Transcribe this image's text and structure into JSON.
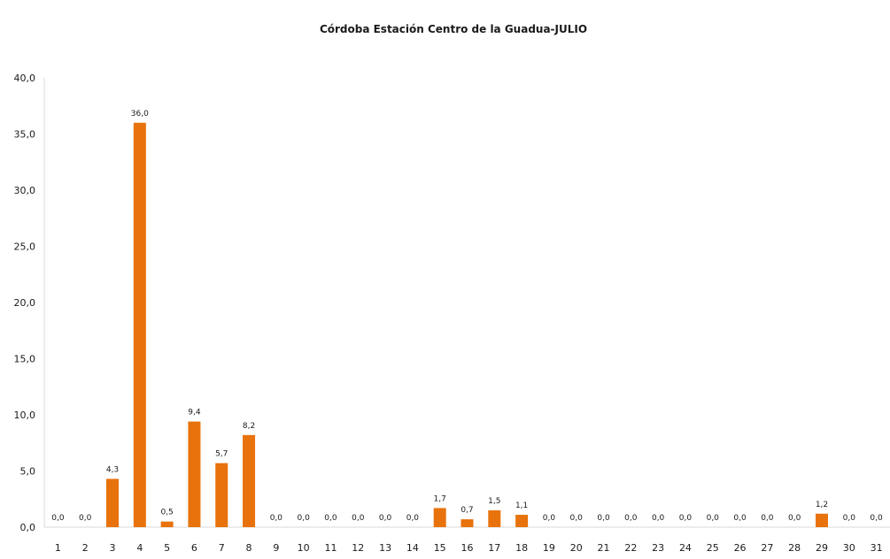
{
  "chart_data": {
    "type": "bar",
    "title": "Córdoba Estación Centro de la Guadua-JULIO",
    "xlabel": "",
    "ylabel": "",
    "ylim": [
      0,
      40
    ],
    "yticks": [
      "0,0",
      "5,0",
      "10,0",
      "15,0",
      "20,0",
      "25,0",
      "30,0",
      "35,0",
      "40,0"
    ],
    "grid": false,
    "legend": "none",
    "bar_color": "#E8720C",
    "categories": [
      "1",
      "2",
      "3",
      "4",
      "5",
      "6",
      "7",
      "8",
      "9",
      "10",
      "11",
      "12",
      "13",
      "14",
      "15",
      "16",
      "17",
      "18",
      "19",
      "20",
      "21",
      "22",
      "23",
      "24",
      "25",
      "26",
      "27",
      "28",
      "29",
      "30",
      "31"
    ],
    "values": [
      0.0,
      0.0,
      4.3,
      36.0,
      0.5,
      9.4,
      5.7,
      8.2,
      0.0,
      0.0,
      0.0,
      0.0,
      0.0,
      0.0,
      1.7,
      0.7,
      1.5,
      1.1,
      0.0,
      0.0,
      0.0,
      0.0,
      0.0,
      0.0,
      0.0,
      0.0,
      0.0,
      0.0,
      1.2,
      0.0,
      0.0
    ],
    "data_labels": [
      "0,0",
      "0,0",
      "4,3",
      "36,0",
      "0,5",
      "9,4",
      "5,7",
      "8,2",
      "0,0",
      "0,0",
      "0,0",
      "0,0",
      "0,0",
      "0,0",
      "1,7",
      "0,7",
      "1,5",
      "1,1",
      "0,0",
      "0,0",
      "0,0",
      "0,0",
      "0,0",
      "0,0",
      "0,0",
      "0,0",
      "0,0",
      "0,0",
      "1,2",
      "0,0",
      "0,0"
    ]
  }
}
